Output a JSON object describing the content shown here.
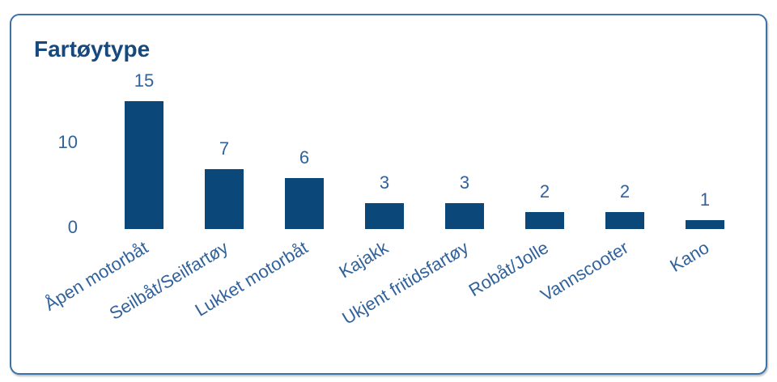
{
  "chart_data": {
    "type": "bar",
    "title": "Fartøytype",
    "categories": [
      "Åpen motorbåt",
      "Seilbåt/Seilfartøy",
      "Lukket motorbåt",
      "Kajakk",
      "Ukjent fritidsfartøy",
      "Robåt/Jolle",
      "Vannscooter",
      "Kano"
    ],
    "values": [
      15,
      7,
      6,
      3,
      3,
      2,
      2,
      1
    ],
    "xlabel": "",
    "ylabel": "",
    "yticks": [
      0,
      10
    ],
    "ylim": [
      0,
      16
    ],
    "grid": false,
    "legend": false,
    "value_labels_shown": true,
    "colors": {
      "bar": "#0B4779",
      "labels": "#31629B",
      "title": "#16497E",
      "card_border": "#3C72A8",
      "background": "#FFFFFF"
    }
  }
}
